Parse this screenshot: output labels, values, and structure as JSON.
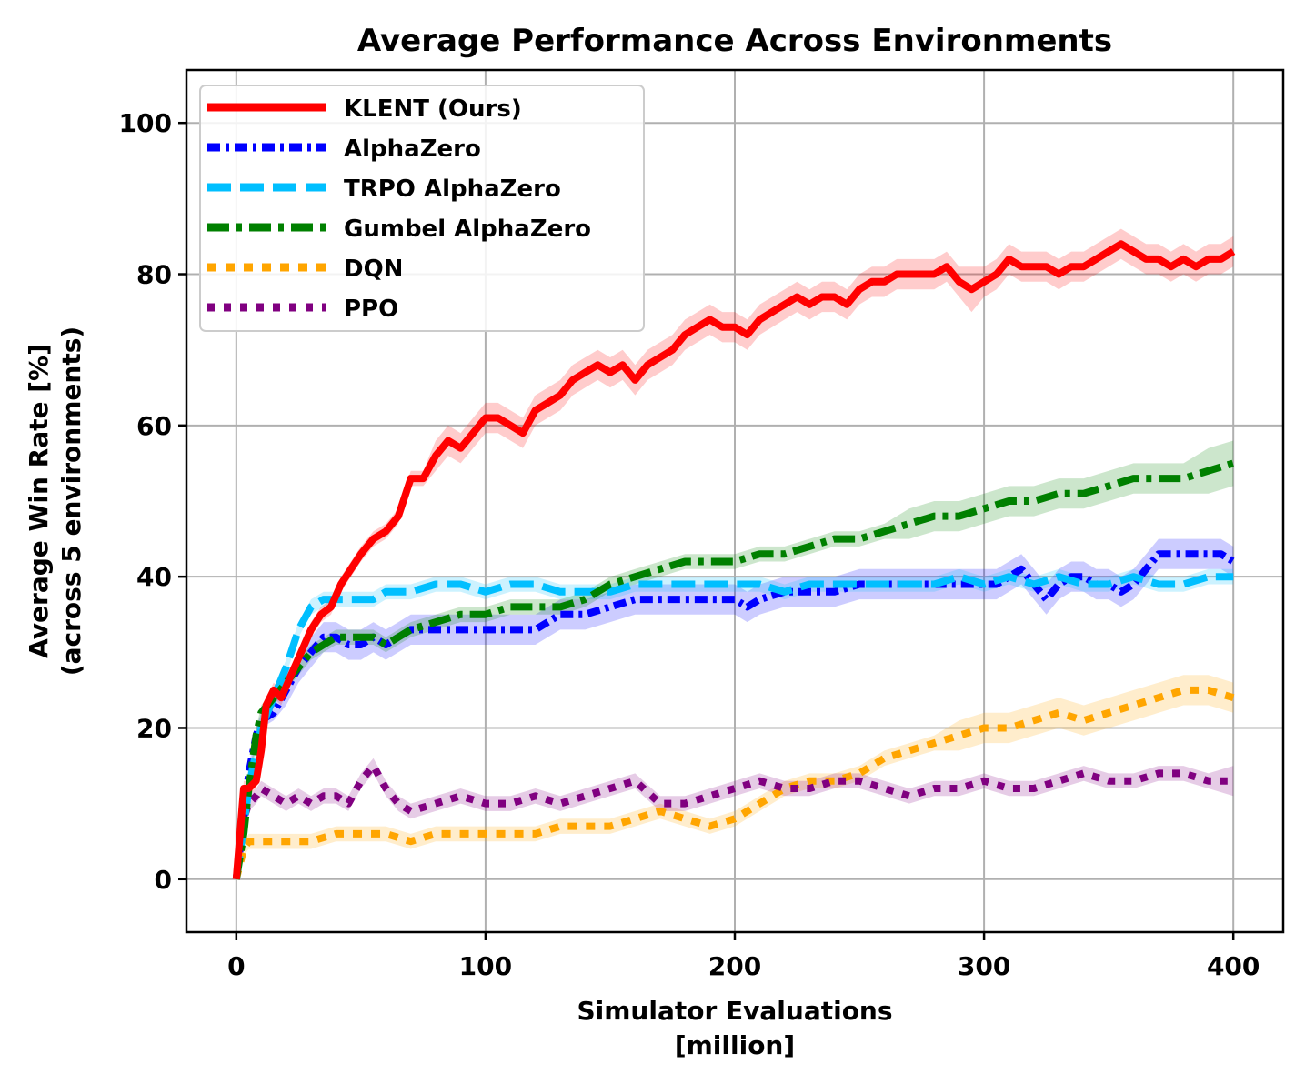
{
  "chart_data": {
    "type": "line",
    "title": "Average Performance Across Environments",
    "xlabel": "Simulator Evaluations",
    "xlabel2": "[million]",
    "ylabel": "Average Win Rate [%]",
    "ylabel2": "(across 5 environments)",
    "xlim": [
      -20,
      420
    ],
    "ylim": [
      -7,
      107
    ],
    "xticks": [
      0,
      100,
      200,
      300,
      400
    ],
    "yticks": [
      0,
      20,
      40,
      60,
      80,
      100
    ],
    "grid": true,
    "legend_position": "top-left",
    "series": [
      {
        "name": "KLENT (Ours)",
        "color": "#ff0000",
        "dash": "solid",
        "x": [
          0,
          3,
          5,
          8,
          10,
          12,
          15,
          18,
          22,
          26,
          30,
          34,
          38,
          42,
          46,
          50,
          55,
          60,
          65,
          70,
          75,
          80,
          85,
          90,
          95,
          100,
          105,
          110,
          115,
          120,
          125,
          130,
          135,
          140,
          145,
          150,
          155,
          160,
          165,
          170,
          175,
          180,
          185,
          190,
          195,
          200,
          205,
          210,
          215,
          220,
          225,
          230,
          235,
          240,
          245,
          250,
          255,
          260,
          265,
          270,
          275,
          280,
          285,
          290,
          295,
          300,
          305,
          310,
          315,
          320,
          325,
          330,
          335,
          340,
          345,
          350,
          355,
          360,
          365,
          370,
          375,
          380,
          385,
          390,
          395,
          400
        ],
        "y": [
          0,
          12,
          12,
          13,
          17,
          23,
          25,
          24,
          27,
          30,
          33,
          35,
          36,
          39,
          41,
          43,
          45,
          46,
          48,
          53,
          53,
          56,
          58,
          57,
          59,
          61,
          61,
          60,
          59,
          62,
          63,
          64,
          66,
          67,
          68,
          67,
          68,
          66,
          68,
          69,
          70,
          72,
          73,
          74,
          73,
          73,
          72,
          74,
          75,
          76,
          77,
          76,
          77,
          77,
          76,
          78,
          79,
          79,
          80,
          80,
          80,
          80,
          81,
          79,
          78,
          79,
          80,
          82,
          81,
          81,
          81,
          80,
          81,
          81,
          82,
          83,
          84,
          83,
          82,
          82,
          81,
          82,
          81,
          82,
          82,
          83
        ],
        "band": [
          0,
          1,
          1,
          1,
          1,
          1,
          1,
          1,
          1,
          1,
          1,
          1,
          1,
          1,
          1,
          1,
          1,
          1,
          1,
          1,
          1,
          2,
          2,
          2,
          2,
          2,
          2,
          2,
          2,
          2,
          2,
          2,
          2,
          2,
          2,
          2,
          2,
          2,
          2,
          2,
          2,
          2,
          2,
          2,
          2,
          2,
          2,
          2,
          2,
          2,
          2,
          2,
          2,
          2,
          2,
          2,
          2,
          2,
          2,
          2,
          2,
          2,
          2,
          2,
          3,
          2,
          2,
          2,
          2,
          2,
          2,
          2,
          2,
          2,
          2,
          2,
          2,
          2,
          2,
          2,
          2,
          2,
          2,
          2,
          2,
          2
        ]
      },
      {
        "name": "AlphaZero",
        "color": "#0000ff",
        "dash": "14 6 4 6",
        "x": [
          0,
          3,
          5,
          8,
          10,
          15,
          20,
          25,
          30,
          35,
          40,
          45,
          50,
          55,
          60,
          65,
          70,
          80,
          90,
          100,
          110,
          120,
          130,
          140,
          150,
          160,
          170,
          180,
          190,
          200,
          205,
          210,
          220,
          230,
          240,
          250,
          260,
          270,
          280,
          290,
          300,
          305,
          310,
          315,
          320,
          325,
          330,
          335,
          340,
          345,
          350,
          355,
          360,
          365,
          370,
          375,
          380,
          385,
          390,
          395,
          400
        ],
        "y": [
          0,
          8,
          14,
          19,
          21,
          22,
          25,
          28,
          30,
          32,
          32,
          31,
          31,
          32,
          31,
          32,
          33,
          33,
          33,
          33,
          33,
          33,
          35,
          35,
          36,
          37,
          37,
          37,
          37,
          37,
          36,
          37,
          38,
          38,
          38,
          39,
          39,
          39,
          39,
          39,
          39,
          39,
          40,
          41,
          39,
          37,
          39,
          40,
          40,
          39,
          39,
          38,
          39,
          41,
          43,
          43,
          43,
          43,
          43,
          43,
          42
        ],
        "band": [
          0,
          1,
          1,
          1,
          1,
          1,
          2,
          2,
          2,
          2,
          2,
          2,
          2,
          2,
          2,
          2,
          2,
          2,
          2,
          2,
          2,
          2,
          2,
          2,
          2,
          2,
          2,
          2,
          2,
          2,
          2,
          2,
          2,
          2,
          2,
          2,
          2,
          2,
          2,
          2,
          2,
          2,
          2,
          2,
          2,
          2,
          2,
          2,
          2,
          2,
          2,
          2,
          2,
          2,
          2,
          2,
          2,
          2,
          2,
          2,
          2
        ]
      },
      {
        "name": "TRPO AlphaZero",
        "color": "#00bfff",
        "dash": "26 10",
        "x": [
          0,
          3,
          5,
          8,
          10,
          15,
          20,
          25,
          30,
          35,
          40,
          45,
          50,
          55,
          60,
          70,
          80,
          90,
          100,
          110,
          120,
          130,
          140,
          150,
          160,
          170,
          180,
          190,
          200,
          210,
          220,
          230,
          240,
          250,
          260,
          270,
          280,
          290,
          300,
          310,
          320,
          330,
          340,
          350,
          360,
          370,
          380,
          390,
          400
        ],
        "y": [
          0,
          7,
          12,
          17,
          20,
          24,
          28,
          33,
          36,
          37,
          37,
          37,
          37,
          37,
          38,
          38,
          39,
          39,
          38,
          39,
          39,
          38,
          38,
          38,
          39,
          39,
          39,
          39,
          39,
          39,
          38,
          39,
          39,
          39,
          39,
          39,
          39,
          40,
          39,
          40,
          39,
          40,
          39,
          39,
          40,
          39,
          39,
          40,
          40
        ],
        "band": [
          0,
          1,
          1,
          1,
          1,
          1,
          1,
          1,
          1,
          1,
          1,
          1,
          1,
          1,
          1,
          1,
          1,
          1,
          1,
          1,
          1,
          1,
          1,
          1,
          1,
          1,
          1,
          1,
          1,
          1,
          1,
          1,
          1,
          1,
          1,
          1,
          1,
          1,
          1,
          1,
          1,
          1,
          1,
          1,
          1,
          1,
          1,
          1,
          1
        ]
      },
      {
        "name": "Gumbel AlphaZero",
        "color": "#008000",
        "dash": "24 8 6 8",
        "x": [
          0,
          3,
          5,
          8,
          10,
          15,
          20,
          25,
          30,
          35,
          40,
          45,
          50,
          55,
          60,
          65,
          70,
          80,
          90,
          100,
          110,
          120,
          130,
          140,
          150,
          160,
          170,
          180,
          190,
          200,
          210,
          220,
          230,
          240,
          250,
          260,
          270,
          280,
          290,
          300,
          310,
          320,
          330,
          340,
          350,
          360,
          370,
          380,
          390,
          400
        ],
        "y": [
          0,
          6,
          12,
          19,
          22,
          24,
          26,
          28,
          30,
          31,
          32,
          32,
          32,
          32,
          31,
          32,
          33,
          34,
          35,
          35,
          36,
          36,
          36,
          37,
          39,
          40,
          41,
          42,
          42,
          42,
          43,
          43,
          44,
          45,
          45,
          46,
          47,
          48,
          48,
          49,
          50,
          50,
          51,
          51,
          52,
          53,
          53,
          53,
          54,
          55
        ],
        "band": [
          0,
          1,
          1,
          1,
          1,
          1,
          1,
          1,
          1,
          1,
          1,
          1,
          1,
          1,
          1,
          1,
          1,
          1,
          1,
          1,
          1,
          1,
          1,
          1,
          1,
          1,
          1,
          1,
          1,
          1,
          1,
          1,
          1,
          1,
          1,
          1,
          2,
          2,
          2,
          2,
          2,
          2,
          2,
          2,
          2,
          2,
          2,
          2,
          3,
          3
        ]
      },
      {
        "name": "DQN",
        "color": "#ffa500",
        "dash": "10 10",
        "x": [
          0,
          3,
          5,
          10,
          20,
          30,
          40,
          50,
          60,
          70,
          80,
          90,
          100,
          110,
          120,
          130,
          140,
          150,
          160,
          170,
          180,
          190,
          200,
          210,
          220,
          230,
          240,
          250,
          260,
          270,
          280,
          290,
          300,
          310,
          320,
          330,
          340,
          350,
          360,
          370,
          380,
          390,
          400
        ],
        "y": [
          0,
          4,
          5,
          5,
          5,
          5,
          6,
          6,
          6,
          5,
          6,
          6,
          6,
          6,
          6,
          7,
          7,
          7,
          8,
          9,
          8,
          7,
          8,
          10,
          12,
          13,
          13,
          14,
          16,
          17,
          18,
          19,
          20,
          20,
          21,
          22,
          21,
          22,
          23,
          24,
          25,
          25,
          24
        ],
        "band": [
          0,
          1,
          1,
          1,
          1,
          1,
          1,
          1,
          1,
          1,
          1,
          1,
          1,
          1,
          1,
          1,
          1,
          1,
          1,
          1,
          1,
          1,
          1,
          1,
          1,
          1,
          1,
          1,
          1,
          1,
          1,
          2,
          2,
          2,
          2,
          2,
          2,
          2,
          2,
          2,
          2,
          2,
          2
        ]
      },
      {
        "name": "PPO",
        "color": "#800080",
        "dash": "8 10",
        "x": [
          0,
          3,
          5,
          8,
          10,
          15,
          20,
          25,
          30,
          35,
          40,
          45,
          50,
          55,
          60,
          65,
          70,
          80,
          90,
          100,
          110,
          120,
          130,
          140,
          150,
          160,
          170,
          180,
          190,
          200,
          210,
          220,
          230,
          240,
          250,
          260,
          270,
          280,
          290,
          300,
          310,
          320,
          330,
          340,
          350,
          360,
          370,
          380,
          390,
          400
        ],
        "y": [
          0,
          8,
          10,
          11,
          12,
          11,
          10,
          11,
          10,
          11,
          11,
          10,
          13,
          15,
          12,
          10,
          9,
          10,
          11,
          10,
          10,
          11,
          10,
          11,
          12,
          13,
          10,
          10,
          11,
          12,
          13,
          12,
          12,
          13,
          13,
          12,
          11,
          12,
          12,
          13,
          12,
          12,
          13,
          14,
          13,
          13,
          14,
          14,
          13,
          13
        ],
        "band": [
          0,
          1,
          1,
          1,
          1,
          1,
          1,
          1,
          1,
          1,
          1,
          1,
          1,
          1,
          1,
          1,
          1,
          1,
          1,
          1,
          1,
          1,
          1,
          1,
          1,
          1,
          1,
          1,
          1,
          1,
          1,
          1,
          1,
          1,
          1,
          1,
          1,
          1,
          1,
          1,
          1,
          1,
          1,
          1,
          1,
          1,
          1,
          1,
          1,
          2
        ]
      }
    ]
  }
}
